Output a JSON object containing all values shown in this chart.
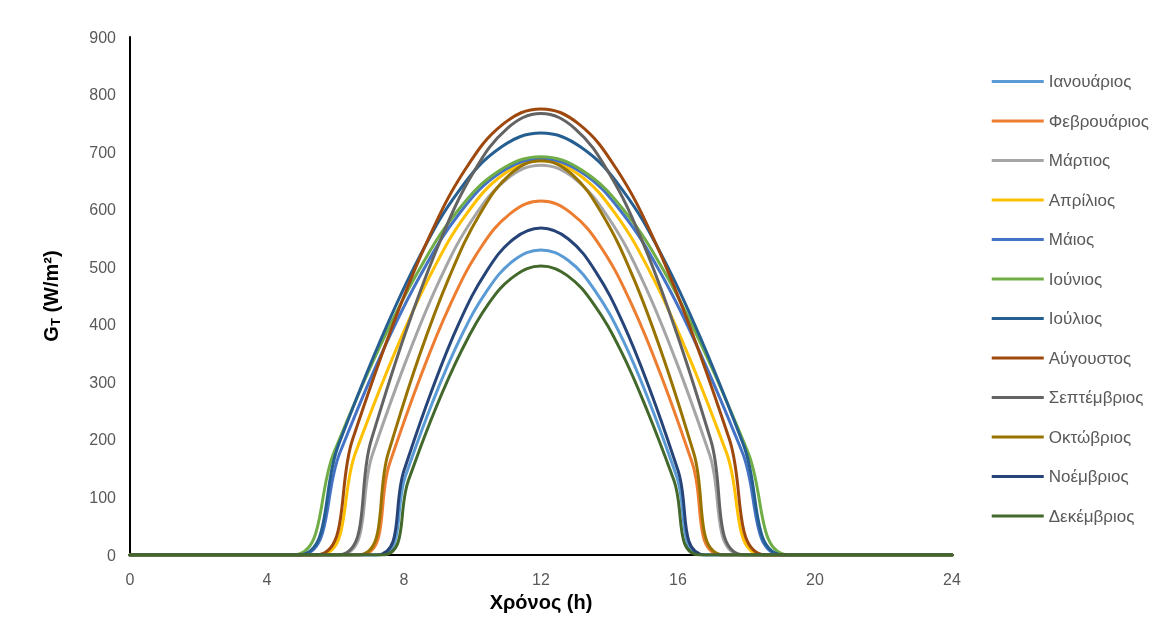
{
  "chart_data": {
    "type": "line",
    "xlabel": "Χρόνος (h)",
    "ylabel": "G$_{T}$ (W/m²)",
    "xlim": [
      0,
      24
    ],
    "xticks": [
      0,
      4,
      8,
      12,
      16,
      20,
      24
    ],
    "ylim": [
      0,
      900
    ],
    "yticks": [
      0,
      100,
      200,
      300,
      400,
      500,
      600,
      700,
      800,
      900
    ],
    "grid": false,
    "legend": "right",
    "marker": "none",
    "line_style": "solid",
    "series": [
      {
        "name": "Ιανουάριος",
        "color": "#5b9bd5",
        "x": [
          0,
          7.25,
          8.04,
          8.83,
          9.63,
          10.42,
          11.21,
          12,
          12.79,
          13.58,
          14.38,
          15.17,
          15.96,
          16.75,
          24
        ],
        "values": [
          0,
          0,
          137,
          265,
          375,
          459,
          512,
          530,
          512,
          459,
          375,
          265,
          137,
          0,
          0
        ]
      },
      {
        "name": "Φεβρουάριος",
        "color": "#ed7d31",
        "x": [
          0,
          6.7,
          7.58,
          8.47,
          9.35,
          10.23,
          11.12,
          12,
          12.88,
          13.77,
          14.65,
          15.53,
          16.42,
          17.3,
          24
        ],
        "values": [
          0,
          0,
          159,
          308,
          435,
          533,
          594,
          615,
          594,
          533,
          435,
          308,
          159,
          0,
          0
        ]
      },
      {
        "name": "Μάρτιος",
        "color": "#a5a5a5",
        "x": [
          0,
          6.1,
          7.08,
          8.07,
          9.05,
          10.03,
          11.02,
          12,
          12.98,
          13.97,
          14.95,
          15.93,
          16.92,
          17.9,
          24
        ],
        "values": [
          0,
          0,
          175,
          339,
          479,
          586,
          654,
          677,
          654,
          586,
          479,
          339,
          175,
          0,
          0
        ]
      },
      {
        "name": "Απρίλιος",
        "color": "#ffc000",
        "x": [
          0,
          5.5,
          6.58,
          7.67,
          8.75,
          9.83,
          10.92,
          12,
          13.08,
          14.17,
          15.25,
          16.33,
          17.42,
          18.5,
          24
        ],
        "values": [
          0,
          0,
          177,
          343,
          484,
          593,
          662,
          685,
          662,
          593,
          484,
          343,
          177,
          0,
          0
        ]
      },
      {
        "name": "Μάιος",
        "color": "#4472c4",
        "x": [
          0,
          4.95,
          6.13,
          7.3,
          8.48,
          9.65,
          10.83,
          12,
          13.18,
          14.35,
          15.53,
          16.7,
          17.88,
          19.05,
          24
        ],
        "values": [
          0,
          0,
          178,
          344,
          486,
          596,
          665,
          688,
          665,
          596,
          486,
          344,
          178,
          0,
          0
        ]
      },
      {
        "name": "Ιούνιος",
        "color": "#70ad47",
        "x": [
          0,
          4.75,
          5.96,
          7.17,
          8.38,
          9.58,
          10.79,
          12,
          13.21,
          14.42,
          15.63,
          16.83,
          18.04,
          19.25,
          24
        ],
        "values": [
          0,
          0,
          179,
          346,
          489,
          599,
          668,
          692,
          668,
          599,
          489,
          346,
          179,
          0,
          0
        ]
      },
      {
        "name": "Ιούλιος",
        "color": "#255e91",
        "x": [
          0,
          4.9,
          6.08,
          7.27,
          8.45,
          9.63,
          10.82,
          12,
          13.18,
          14.37,
          15.55,
          16.73,
          17.92,
          19.1,
          24
        ],
        "values": [
          0,
          0,
          190,
          367,
          518,
          635,
          708,
          733,
          708,
          635,
          518,
          367,
          190,
          0,
          0
        ]
      },
      {
        "name": "Αύγουστος",
        "color": "#9e480e",
        "x": [
          0,
          5.4,
          6.5,
          7.6,
          8.7,
          9.8,
          10.9,
          12,
          13.1,
          14.2,
          15.3,
          16.4,
          17.5,
          18.6,
          24
        ],
        "values": [
          0,
          0,
          201,
          388,
          548,
          671,
          749,
          775,
          749,
          671,
          548,
          388,
          201,
          0,
          0
        ]
      },
      {
        "name": "Σεπτέμβριος",
        "color": "#636363",
        "x": [
          0,
          6.05,
          7.04,
          8.03,
          9.03,
          10.02,
          11.01,
          12,
          12.99,
          13.98,
          14.98,
          15.97,
          16.96,
          17.95,
          24
        ],
        "values": [
          0,
          0,
          199,
          384,
          542,
          664,
          741,
          767,
          741,
          664,
          542,
          384,
          199,
          0,
          0
        ]
      },
      {
        "name": "Οκτώβριος",
        "color": "#997300",
        "x": [
          0,
          6.65,
          7.54,
          8.43,
          9.33,
          10.22,
          11.11,
          12,
          12.89,
          13.78,
          14.68,
          15.57,
          16.46,
          17.35,
          24
        ],
        "values": [
          0,
          0,
          177,
          343,
          484,
          593,
          662,
          685,
          662,
          593,
          484,
          343,
          177,
          0,
          0
        ]
      },
      {
        "name": "Νοέμβριος",
        "color": "#264478",
        "x": [
          0,
          7.2,
          8,
          8.8,
          9.6,
          10.4,
          11.2,
          12,
          12.8,
          13.6,
          14.4,
          15.2,
          16,
          16.8,
          24
        ],
        "values": [
          0,
          0,
          147,
          284,
          402,
          492,
          549,
          568,
          549,
          492,
          402,
          284,
          147,
          0,
          0
        ]
      },
      {
        "name": "Δεκέμβριος",
        "color": "#43682b",
        "x": [
          0,
          7.35,
          8.13,
          8.9,
          9.68,
          10.45,
          11.23,
          12,
          12.78,
          13.55,
          14.33,
          15.1,
          15.88,
          16.65,
          24
        ],
        "values": [
          0,
          0,
          130,
          251,
          355,
          435,
          485,
          502,
          485,
          435,
          355,
          251,
          130,
          0,
          0
        ]
      }
    ]
  }
}
